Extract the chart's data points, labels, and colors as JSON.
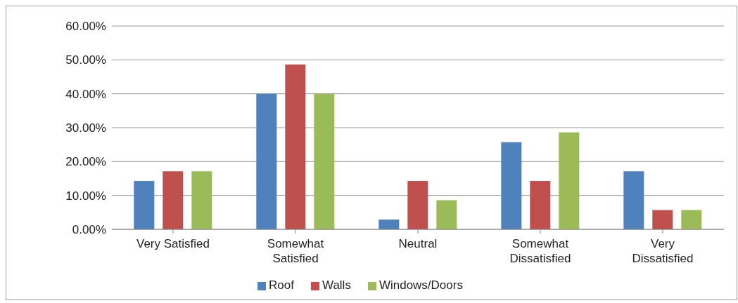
{
  "chart_data": {
    "type": "bar",
    "categories": [
      "Very Satisfied",
      "Somewhat Satisfied",
      "Neutral",
      "Somewhat Dissatisfied",
      "Very Dissatisfied"
    ],
    "series": [
      {
        "name": "Roof",
        "color": "#4f81bd",
        "values": [
          14.3,
          40,
          2.9,
          25.7,
          17.1
        ]
      },
      {
        "name": "Walls",
        "color": "#c0504d",
        "values": [
          17.1,
          48.6,
          14.3,
          14.3,
          5.7
        ]
      },
      {
        "name": "Windows/Doors",
        "color": "#9bbb59",
        "values": [
          17.1,
          40,
          8.6,
          28.6,
          5.7
        ]
      }
    ],
    "ylim": [
      0,
      60
    ],
    "yticks": [
      {
        "value": 0,
        "label": "0.00%"
      },
      {
        "value": 10,
        "label": "10.00%"
      },
      {
        "value": 20,
        "label": "20.00%"
      },
      {
        "value": 30,
        "label": "30.00%"
      },
      {
        "value": 40,
        "label": "40.00%"
      },
      {
        "value": 50,
        "label": "50.00%"
      },
      {
        "value": 60,
        "label": "60.00%"
      }
    ],
    "grid": "y",
    "legend": "bottom"
  }
}
